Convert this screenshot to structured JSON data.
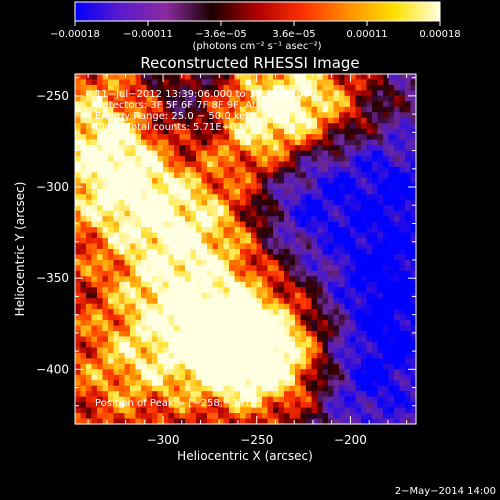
{
  "chart_data": {
    "type": "heatmap",
    "title": "Reconstructed RHESSI Image",
    "xlabel": "Heliocentric X (arcsec)",
    "ylabel": "Heliocentric Y (arcsec)",
    "xlim": [
      -347,
      -165
    ],
    "ylim": [
      -430,
      -238
    ],
    "x_ticks": [
      "−300",
      "−250",
      "−200"
    ],
    "y_ticks": [
      "−250",
      "−300",
      "−350",
      "−400"
    ],
    "x_tick_values": [
      -300,
      -250,
      -200
    ],
    "y_tick_values": [
      -250,
      -300,
      -350,
      -400
    ],
    "colorbar": {
      "range": [
        -0.00018,
        0.00018
      ],
      "tick_labels": [
        "−0.00018",
        "−0.00011",
        "−3.6e−05",
        "3.6e−05",
        "0.00011",
        "0.00018"
      ],
      "unit_label": "(photons cm⁻² s⁻¹ asec⁻²)",
      "colors": [
        "#0000ff",
        "#5a1acc",
        "#8a2aa0",
        "#1a0000",
        "#b00000",
        "#ff3000",
        "#ff9000",
        "#ffe000",
        "#ffffe0"
      ]
    },
    "annotations": [
      "11−Jul−2012 13:39:06.000 to 13:45:06.000",
      "Detectors: 3F 5F 6F 7F 8F 9F, Att 0",
      "Energy Range: 25.0 − 50.0 keV",
      "Clean     Total counts: 5.71E+03"
    ],
    "peak_label": "Position of Peak = [−258,−391]",
    "peak": [
      -258,
      -391
    ],
    "hot_regions": [
      {
        "x": -320,
        "y": -300,
        "level": 0.95
      },
      {
        "x": -330,
        "y": -265,
        "level": 0.7
      },
      {
        "x": -250,
        "y": -270,
        "level": 0.75
      },
      {
        "x": -232,
        "y": -254,
        "level": 0.85
      },
      {
        "x": -285,
        "y": -320,
        "level": 0.7
      },
      {
        "x": -300,
        "y": -355,
        "level": 0.65
      },
      {
        "x": -270,
        "y": -380,
        "level": 0.8
      },
      {
        "x": -258,
        "y": -391,
        "level": 1.0
      },
      {
        "x": -235,
        "y": -395,
        "level": 0.85
      },
      {
        "x": -210,
        "y": -255,
        "level": 0.6
      },
      {
        "x": -315,
        "y": -400,
        "level": 0.6
      },
      {
        "x": -250,
        "y": -330,
        "level": 0.45
      }
    ],
    "cool_regions": [
      {
        "x": -230,
        "y": -318,
        "level": 0.75
      },
      {
        "x": -185,
        "y": -345,
        "level": 0.7
      },
      {
        "x": -175,
        "y": -300,
        "level": 0.6
      },
      {
        "x": -195,
        "y": -410,
        "level": 0.6
      },
      {
        "x": -290,
        "y": -260,
        "level": 0.45
      },
      {
        "x": -215,
        "y": -285,
        "level": 0.6
      },
      {
        "x": -180,
        "y": -380,
        "level": 0.55
      }
    ],
    "grid": false
  },
  "footer": {
    "date": "2−May−2014 14:00"
  }
}
